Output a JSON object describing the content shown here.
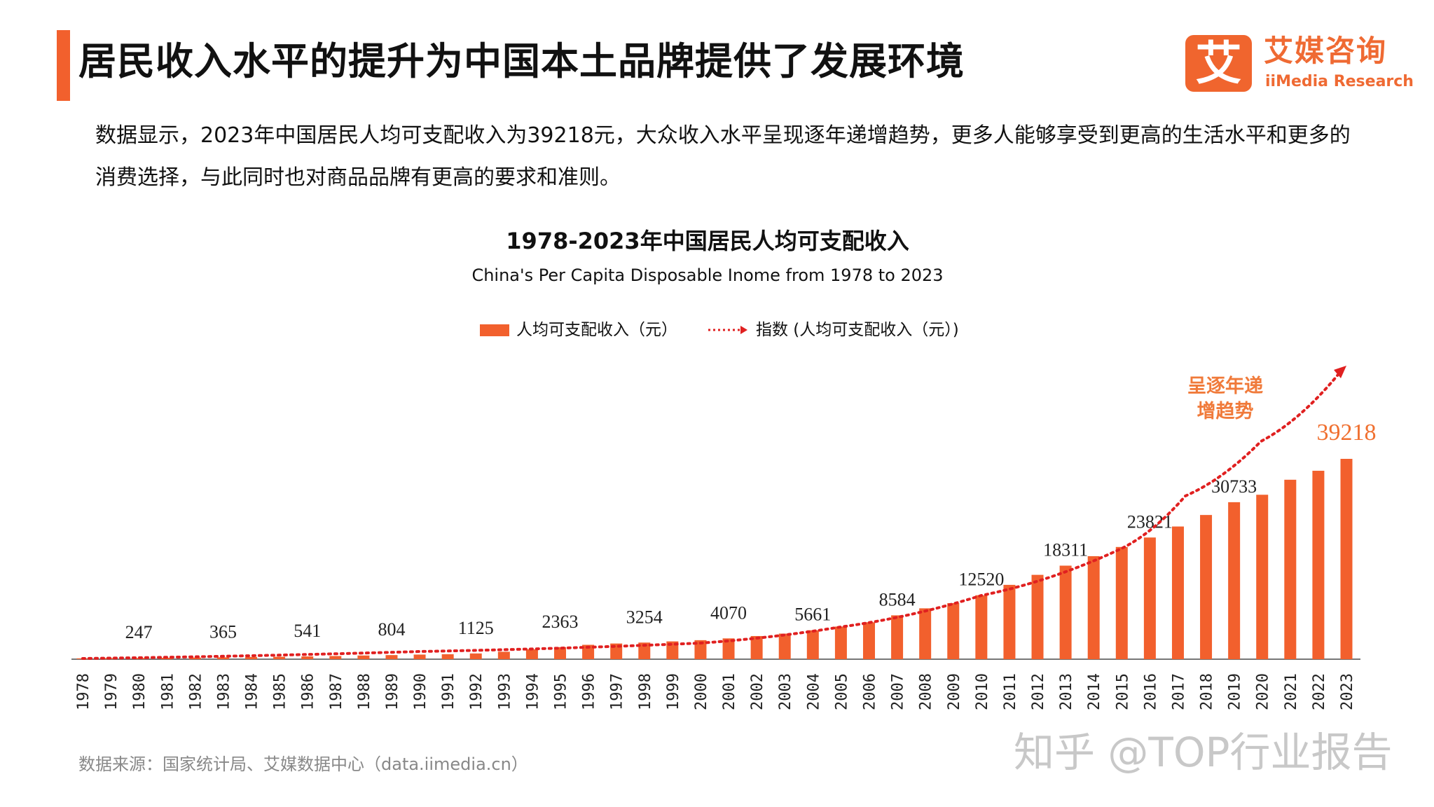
{
  "header": {
    "title": "居民收入水平的提升为中国本土品牌提供了发展环境"
  },
  "logo": {
    "mark": "艾",
    "name_cn": "艾媒咨询",
    "name_en": "iiMedia Research"
  },
  "paragraph": "数据显示，2023年中国居民人均可支配收入为39218元，大众收入水平呈现逐年递增趋势，更多人能够享受到更高的生活水平和更多的消费选择，与此同时也对商品品牌有更高的要求和准则。",
  "chart_data": {
    "type": "bar",
    "title": "1978-2023年中国居民人均可支配收入",
    "subtitle": "China's Per Capita Disposable Inome from 1978 to 2023",
    "legend": [
      {
        "name": "人均可支配收入（元）",
        "type": "bar",
        "color": "#f2602d"
      },
      {
        "name": "指数 (人均可支配收入（元）)",
        "type": "dotted-arrow",
        "color": "#e02020"
      }
    ],
    "legend_position": "top",
    "categories": [
      "1978",
      "1979",
      "1980",
      "1981",
      "1982",
      "1983",
      "1984",
      "1985",
      "1986",
      "1987",
      "1988",
      "1989",
      "1990",
      "1991",
      "1992",
      "1993",
      "1994",
      "1995",
      "1996",
      "1997",
      "1998",
      "1999",
      "2000",
      "2001",
      "2002",
      "2003",
      "2004",
      "2005",
      "2006",
      "2007",
      "2008",
      "2009",
      "2010",
      "2011",
      "2012",
      "2013",
      "2014",
      "2015",
      "2016",
      "2017",
      "2018",
      "2019",
      "2020",
      "2021",
      "2022",
      "2023"
    ],
    "values": [
      171,
      212,
      247,
      276,
      325,
      365,
      437,
      478,
      541,
      620,
      722,
      804,
      904,
      976,
      1125,
      1454,
      1947,
      2363,
      2814,
      3070,
      3254,
      3485,
      3721,
      4070,
      4532,
      5007,
      5661,
      6385,
      7229,
      8584,
      9956,
      10977,
      12520,
      14551,
      16510,
      18311,
      20167,
      21966,
      23821,
      25974,
      28228,
      30733,
      32189,
      35128,
      36883,
      39218
    ],
    "data_labels": {
      "1980": "247",
      "1983": "365",
      "1986": "541",
      "1989": "804",
      "1992": "1125",
      "1995": "2363",
      "1998": "3254",
      "2001": "4070",
      "2004": "5661",
      "2007": "8584",
      "2010": "12520",
      "2013": "18311",
      "2016": "23821",
      "2019": "30733",
      "2023": "39218"
    },
    "highlight_label_color": "#f07030",
    "annotation": [
      "呈逐年递",
      "增趋势"
    ],
    "ylim": [
      0,
      39218
    ],
    "grid": false,
    "bar_color": "#f2602d",
    "trend_color": "#e02020"
  },
  "footer": {
    "source": "数据来源：国家统计局、艾媒数据中心（data.iimedia.cn）",
    "watermark": "知乎 @TOP行业报告"
  }
}
